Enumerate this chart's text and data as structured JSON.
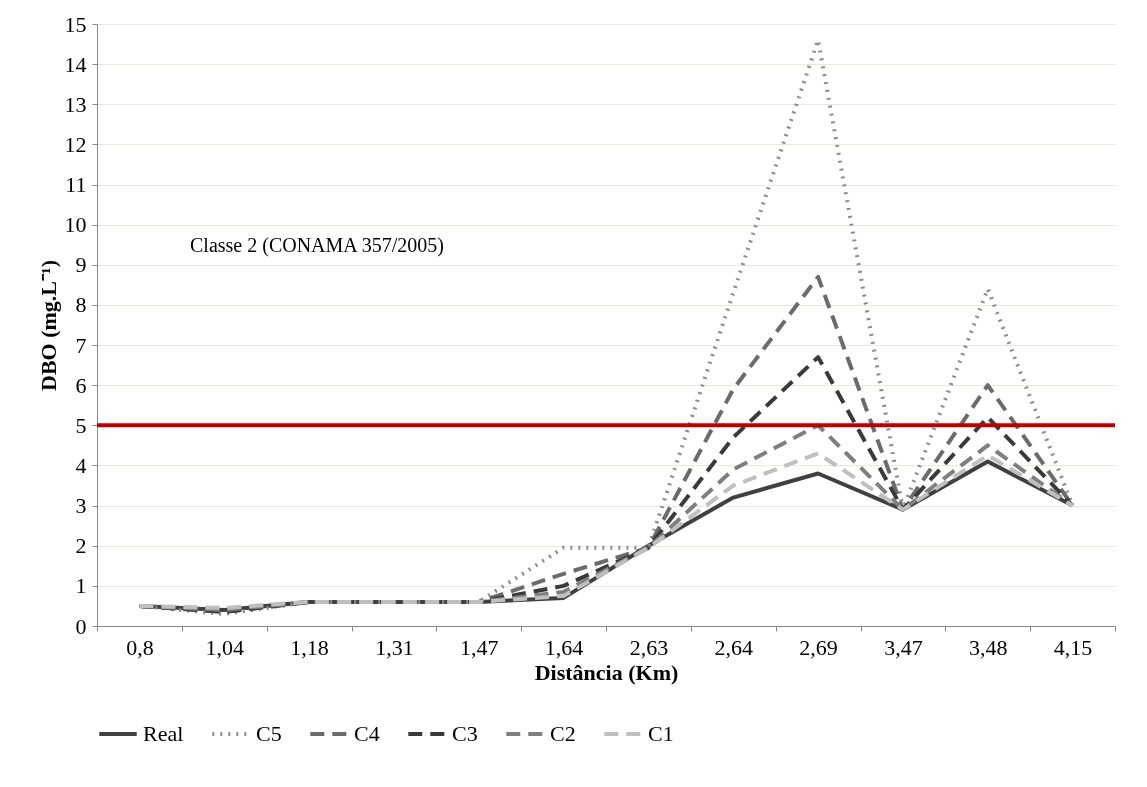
{
  "chart_data": {
    "type": "line",
    "xlabel": "Distância (Km)",
    "ylabel": "DBO (mg.L⁻¹)",
    "categories": [
      "0,8",
      "1,04",
      "1,18",
      "1,31",
      "1,47",
      "1,64",
      "2,63",
      "2,64",
      "2,69",
      "3,47",
      "3,48",
      "4,15"
    ],
    "ylim": [
      0,
      15
    ],
    "yticks": [
      0,
      1,
      2,
      3,
      4,
      5,
      6,
      7,
      8,
      9,
      10,
      11,
      12,
      13,
      14,
      15
    ],
    "grid": "y",
    "legend": "bottom",
    "series": [
      {
        "name": "Real",
        "color": "#404040",
        "line_style": "solid",
        "values": [
          0.5,
          0.4,
          0.6,
          0.6,
          0.6,
          0.7,
          2,
          3.2,
          3.8,
          2.9,
          4.1,
          3.0
        ]
      },
      {
        "name": "C5",
        "color": "#8c8c8c",
        "line_style": "dotted",
        "values": [
          0.5,
          0.3,
          0.6,
          0.6,
          0.6,
          1.95,
          1.95,
          8.3,
          14.6,
          2.9,
          8.4,
          3.0
        ]
      },
      {
        "name": "C4",
        "color": "#6b6b6b",
        "line_style": "dashed",
        "values": [
          0.5,
          0.35,
          0.6,
          0.6,
          0.6,
          1.3,
          1.95,
          5.9,
          8.7,
          2.9,
          6.0,
          3.0
        ]
      },
      {
        "name": "C3",
        "color": "#3a3a3a",
        "line_style": "dashed",
        "values": [
          0.5,
          0.35,
          0.6,
          0.6,
          0.6,
          1.0,
          1.95,
          4.7,
          6.7,
          2.9,
          5.2,
          3.0
        ]
      },
      {
        "name": "C2",
        "color": "#7f7f7f",
        "line_style": "dashed",
        "values": [
          0.5,
          0.4,
          0.6,
          0.6,
          0.6,
          0.85,
          1.95,
          3.9,
          5.0,
          2.9,
          4.5,
          3.0
        ]
      },
      {
        "name": "C1",
        "color": "#bfbfbf",
        "line_style": "dashed",
        "values": [
          0.5,
          0.45,
          0.6,
          0.6,
          0.6,
          0.75,
          1.95,
          3.5,
          4.3,
          2.9,
          4.25,
          3.0
        ]
      }
    ],
    "annotations": [
      "Classe 2 (CONAMA 357/2005)"
    ],
    "ref_lines": [
      {
        "axis": "y",
        "value": 5,
        "color": "#c00000"
      }
    ]
  }
}
